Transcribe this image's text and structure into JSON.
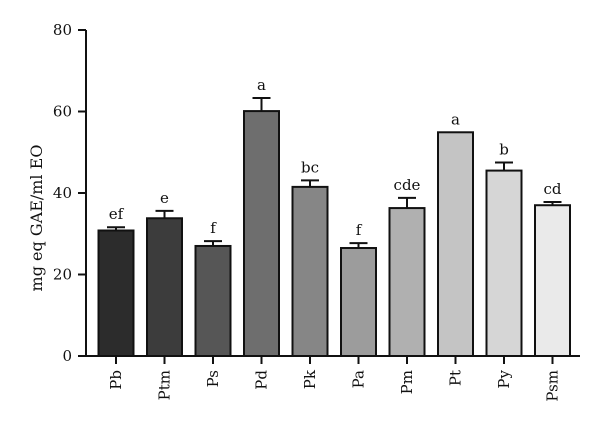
{
  "chart_data": {
    "type": "bar",
    "ylabel": "mg eq GAE/ml EO",
    "xlabel": "",
    "ylim": [
      0,
      80
    ],
    "yticks": [
      0,
      20,
      40,
      60,
      80
    ],
    "grid": false,
    "categories": [
      "Pb",
      "Ptm",
      "Ps",
      "Pd",
      "Pk",
      "Pa",
      "Pm",
      "Pt",
      "Py",
      "Psm"
    ],
    "values": [
      30.8,
      33.8,
      27.0,
      60.1,
      41.5,
      26.5,
      36.3,
      54.9,
      45.5,
      37.0
    ],
    "errors": [
      0.8,
      1.8,
      1.2,
      3.2,
      1.6,
      1.2,
      2.5,
      0.0,
      2.0,
      0.8
    ],
    "significance_labels": [
      "ef",
      "e",
      "f",
      "a",
      "bc",
      "f",
      "cde",
      "a",
      "b",
      "cd"
    ],
    "colors": [
      "#2c2c2c",
      "#3c3c3c",
      "#565656",
      "#6e6e6e",
      "#868686",
      "#9c9c9c",
      "#b0b0b0",
      "#c4c4c4",
      "#d6d6d6",
      "#eaeaea"
    ]
  }
}
